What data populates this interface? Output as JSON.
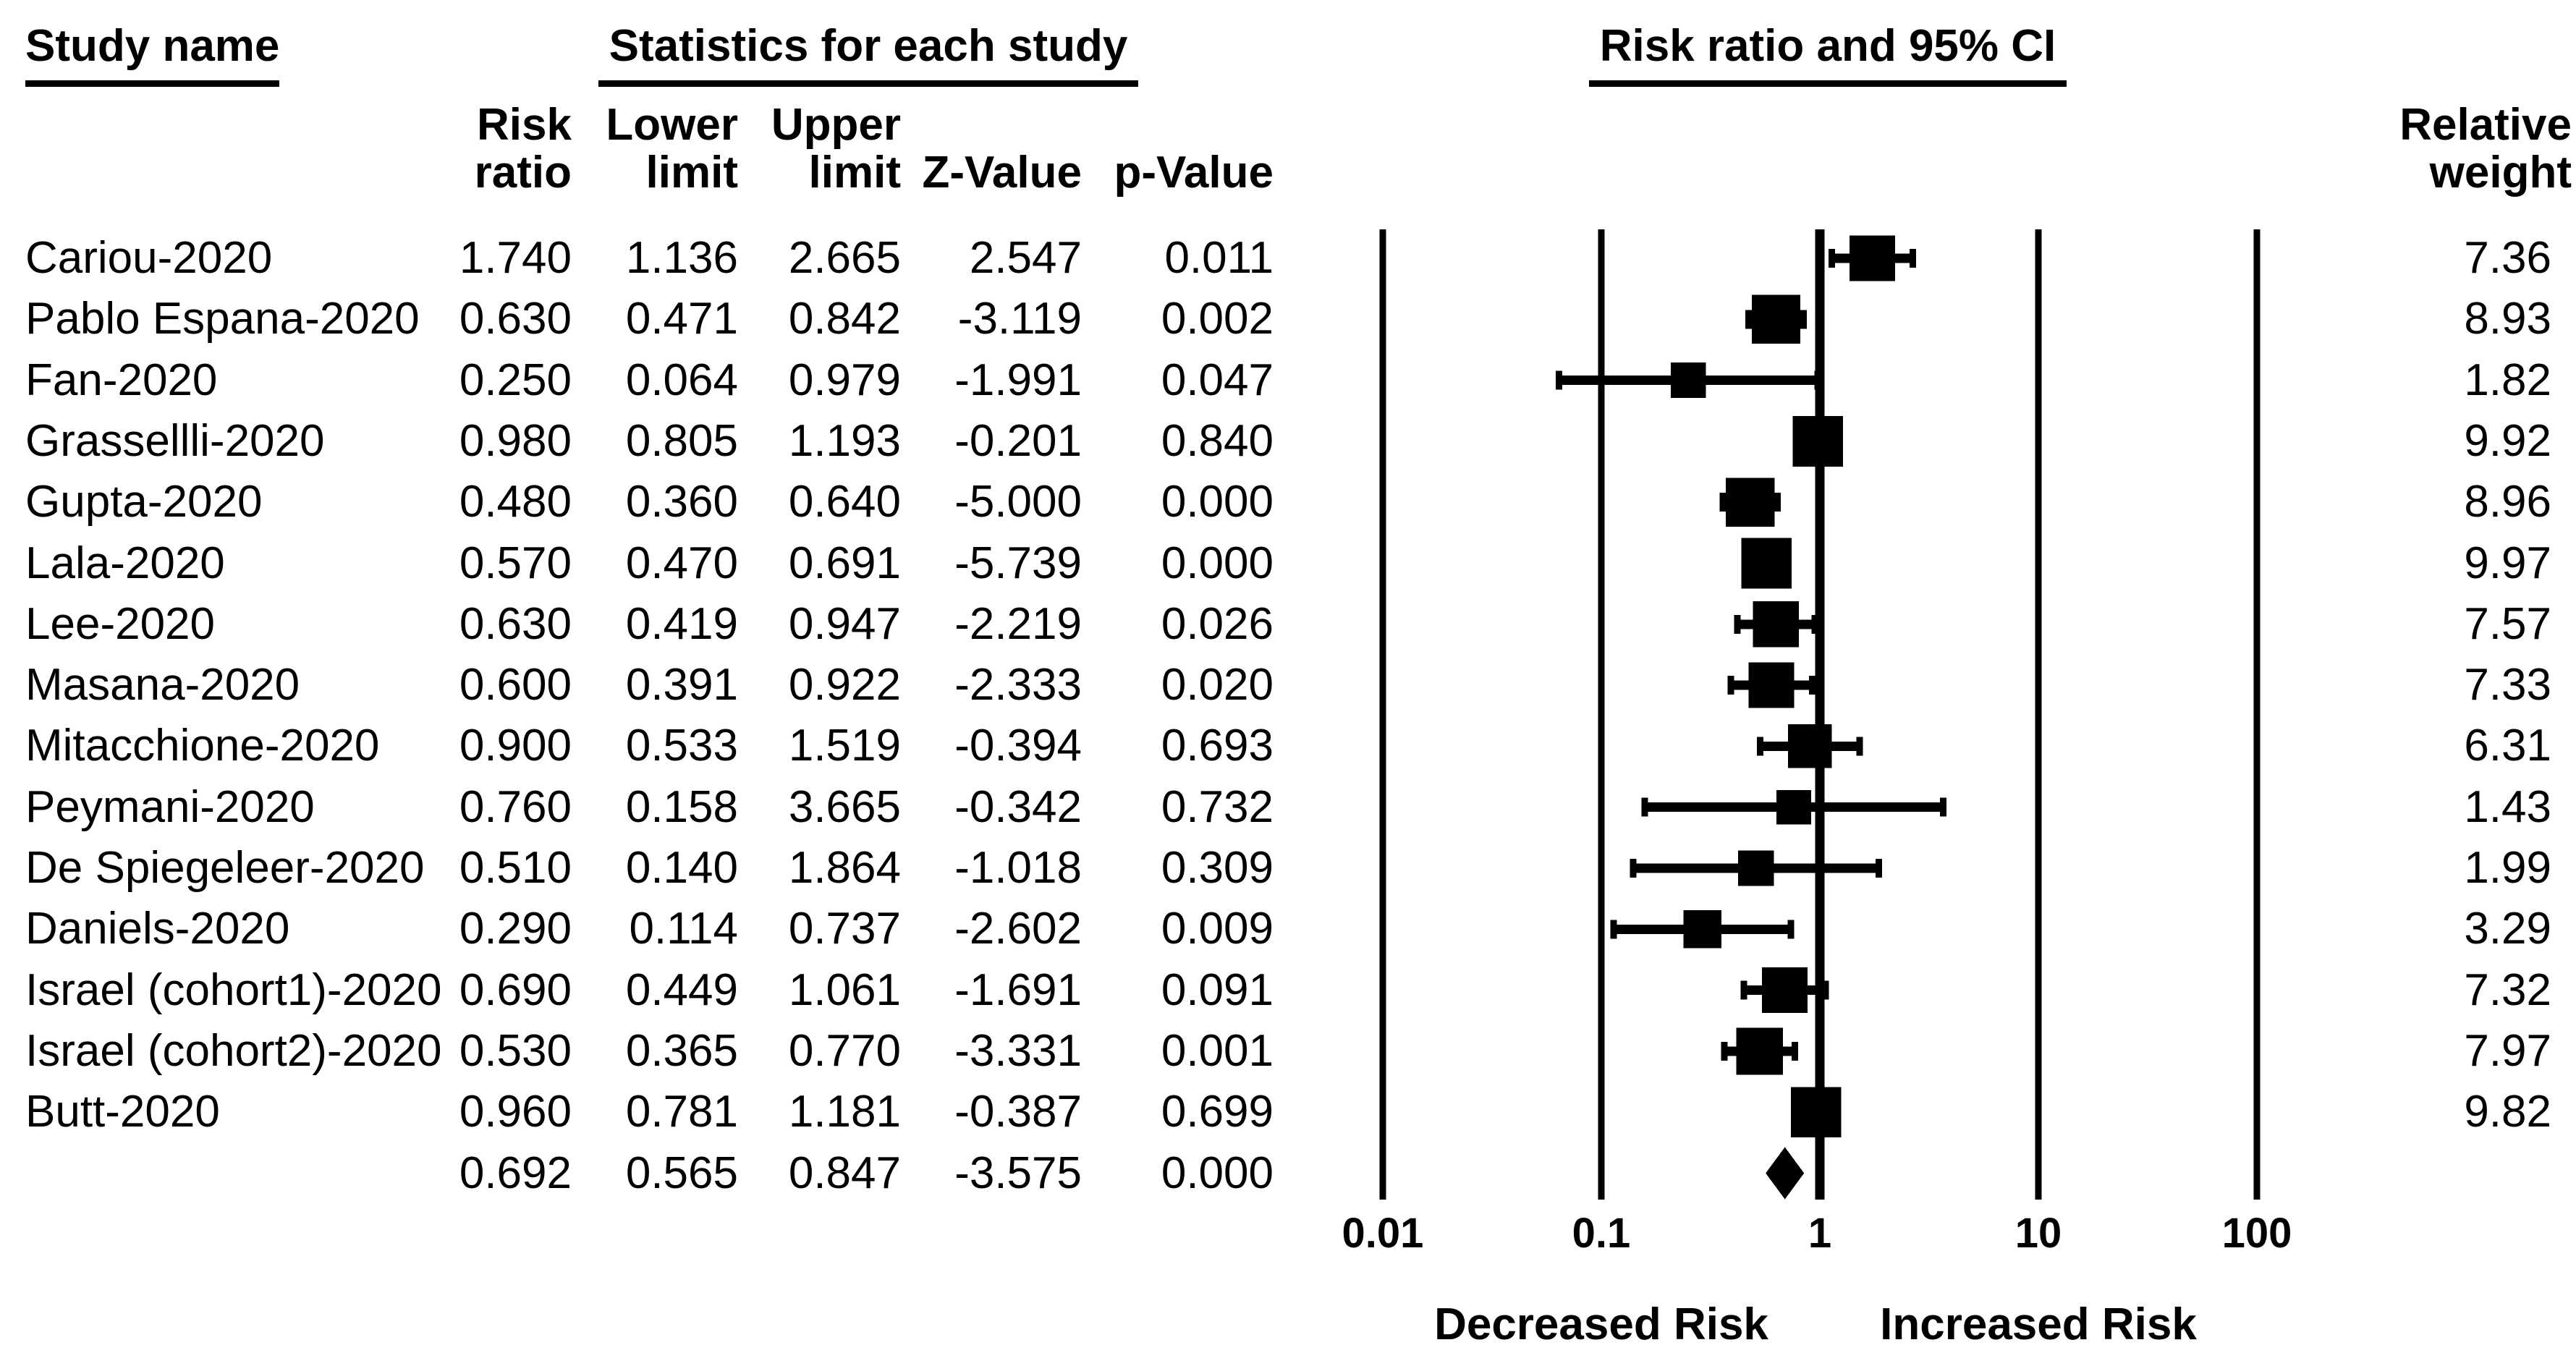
{
  "colors": {
    "ink": "#000000",
    "background": "#ffffff"
  },
  "headers": {
    "study": "Study name",
    "stats": "Statistics for each study",
    "plot": "Risk ratio and 95% CI",
    "col_risk_1": "Risk",
    "col_risk_2": "ratio",
    "col_lower_1": "Lower",
    "col_lower_2": "limit",
    "col_upper_1": "Upper",
    "col_upper_2": "limit",
    "col_z": "Z-Value",
    "col_p": "p-Value",
    "col_weight_1": "Relative",
    "col_weight_2": "weight"
  },
  "chart_data": {
    "type": "forest",
    "title": "Risk ratio and 95% CI",
    "x_scale": "log10",
    "xlim": [
      0.01,
      100
    ],
    "x_ticks": [
      "0.01",
      "0.1",
      "1",
      "10",
      "100"
    ],
    "x_tick_values": [
      0.01,
      0.1,
      1,
      10,
      100
    ],
    "reference_line": 1,
    "axis_label_left": "Decreased Risk",
    "axis_label_right": "Increased Risk",
    "columns": [
      "Risk ratio",
      "Lower limit",
      "Upper limit",
      "Z-Value",
      "p-Value",
      "Relative weight"
    ],
    "studies": [
      {
        "name": "Cariou-2020",
        "rr": 1.74,
        "ll": 1.136,
        "ul": 2.665,
        "z": 2.547,
        "p": 0.011,
        "weight": 7.36
      },
      {
        "name": "Pablo Espana-2020",
        "rr": 0.63,
        "ll": 0.471,
        "ul": 0.842,
        "z": -3.119,
        "p": 0.002,
        "weight": 8.93
      },
      {
        "name": "Fan-2020",
        "rr": 0.25,
        "ll": 0.064,
        "ul": 0.979,
        "z": -1.991,
        "p": 0.047,
        "weight": 1.82
      },
      {
        "name": "Grassellli-2020",
        "rr": 0.98,
        "ll": 0.805,
        "ul": 1.193,
        "z": -0.201,
        "p": 0.84,
        "weight": 9.92
      },
      {
        "name": "Gupta-2020",
        "rr": 0.48,
        "ll": 0.36,
        "ul": 0.64,
        "z": -5.0,
        "p": 0.0,
        "weight": 8.96
      },
      {
        "name": "Lala-2020",
        "rr": 0.57,
        "ll": 0.47,
        "ul": 0.691,
        "z": -5.739,
        "p": 0.0,
        "weight": 9.97
      },
      {
        "name": "Lee-2020",
        "rr": 0.63,
        "ll": 0.419,
        "ul": 0.947,
        "z": -2.219,
        "p": 0.026,
        "weight": 7.57
      },
      {
        "name": "Masana-2020",
        "rr": 0.6,
        "ll": 0.391,
        "ul": 0.922,
        "z": -2.333,
        "p": 0.02,
        "weight": 7.33
      },
      {
        "name": "Mitacchione-2020",
        "rr": 0.9,
        "ll": 0.533,
        "ul": 1.519,
        "z": -0.394,
        "p": 0.693,
        "weight": 6.31
      },
      {
        "name": "Peymani-2020",
        "rr": 0.76,
        "ll": 0.158,
        "ul": 3.665,
        "z": -0.342,
        "p": 0.732,
        "weight": 1.43
      },
      {
        "name": "De Spiegeleer-2020",
        "rr": 0.51,
        "ll": 0.14,
        "ul": 1.864,
        "z": -1.018,
        "p": 0.309,
        "weight": 1.99
      },
      {
        "name": "Daniels-2020",
        "rr": 0.29,
        "ll": 0.114,
        "ul": 0.737,
        "z": -2.602,
        "p": 0.009,
        "weight": 3.29
      },
      {
        "name": "Israel (cohort1)-2020",
        "rr": 0.69,
        "ll": 0.449,
        "ul": 1.061,
        "z": -1.691,
        "p": 0.091,
        "weight": 7.32
      },
      {
        "name": "Israel (cohort2)-2020",
        "rr": 0.53,
        "ll": 0.365,
        "ul": 0.77,
        "z": -3.331,
        "p": 0.001,
        "weight": 7.97
      },
      {
        "name": "Butt-2020",
        "rr": 0.96,
        "ll": 0.781,
        "ul": 1.181,
        "z": -0.387,
        "p": 0.699,
        "weight": 9.82
      }
    ],
    "overall": {
      "name": "",
      "rr": 0.692,
      "ll": 0.565,
      "ul": 0.847,
      "z": -3.575,
      "p": 0.0
    }
  }
}
